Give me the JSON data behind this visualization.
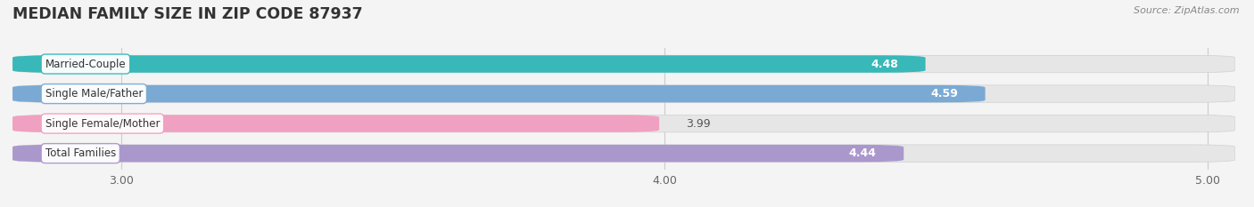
{
  "title": "MEDIAN FAMILY SIZE IN ZIP CODE 87937",
  "source": "Source: ZipAtlas.com",
  "categories": [
    "Married-Couple",
    "Single Male/Father",
    "Single Female/Mother",
    "Total Families"
  ],
  "values": [
    4.48,
    4.59,
    3.99,
    4.44
  ],
  "bar_colors": [
    "#38b8b8",
    "#7aaad4",
    "#f0a0c0",
    "#aa98cc"
  ],
  "label_border_colors": [
    "#38b8b8",
    "#7aaad4",
    "#f0a0c0",
    "#aa98cc"
  ],
  "value_label_inside": [
    true,
    true,
    false,
    true
  ],
  "xlim_min": 2.8,
  "xlim_max": 5.05,
  "xticks": [
    3.0,
    4.0,
    5.0
  ],
  "xtick_labels": [
    "3.00",
    "4.00",
    "5.00"
  ],
  "bar_height": 0.58,
  "figsize": [
    14.06,
    2.33
  ],
  "dpi": 100,
  "bg_color": "#f4f4f4",
  "bar_bg_color": "#e6e6e6",
  "title_fontsize": 12.5,
  "label_fontsize": 8.5,
  "value_fontsize": 9,
  "tick_fontsize": 9
}
